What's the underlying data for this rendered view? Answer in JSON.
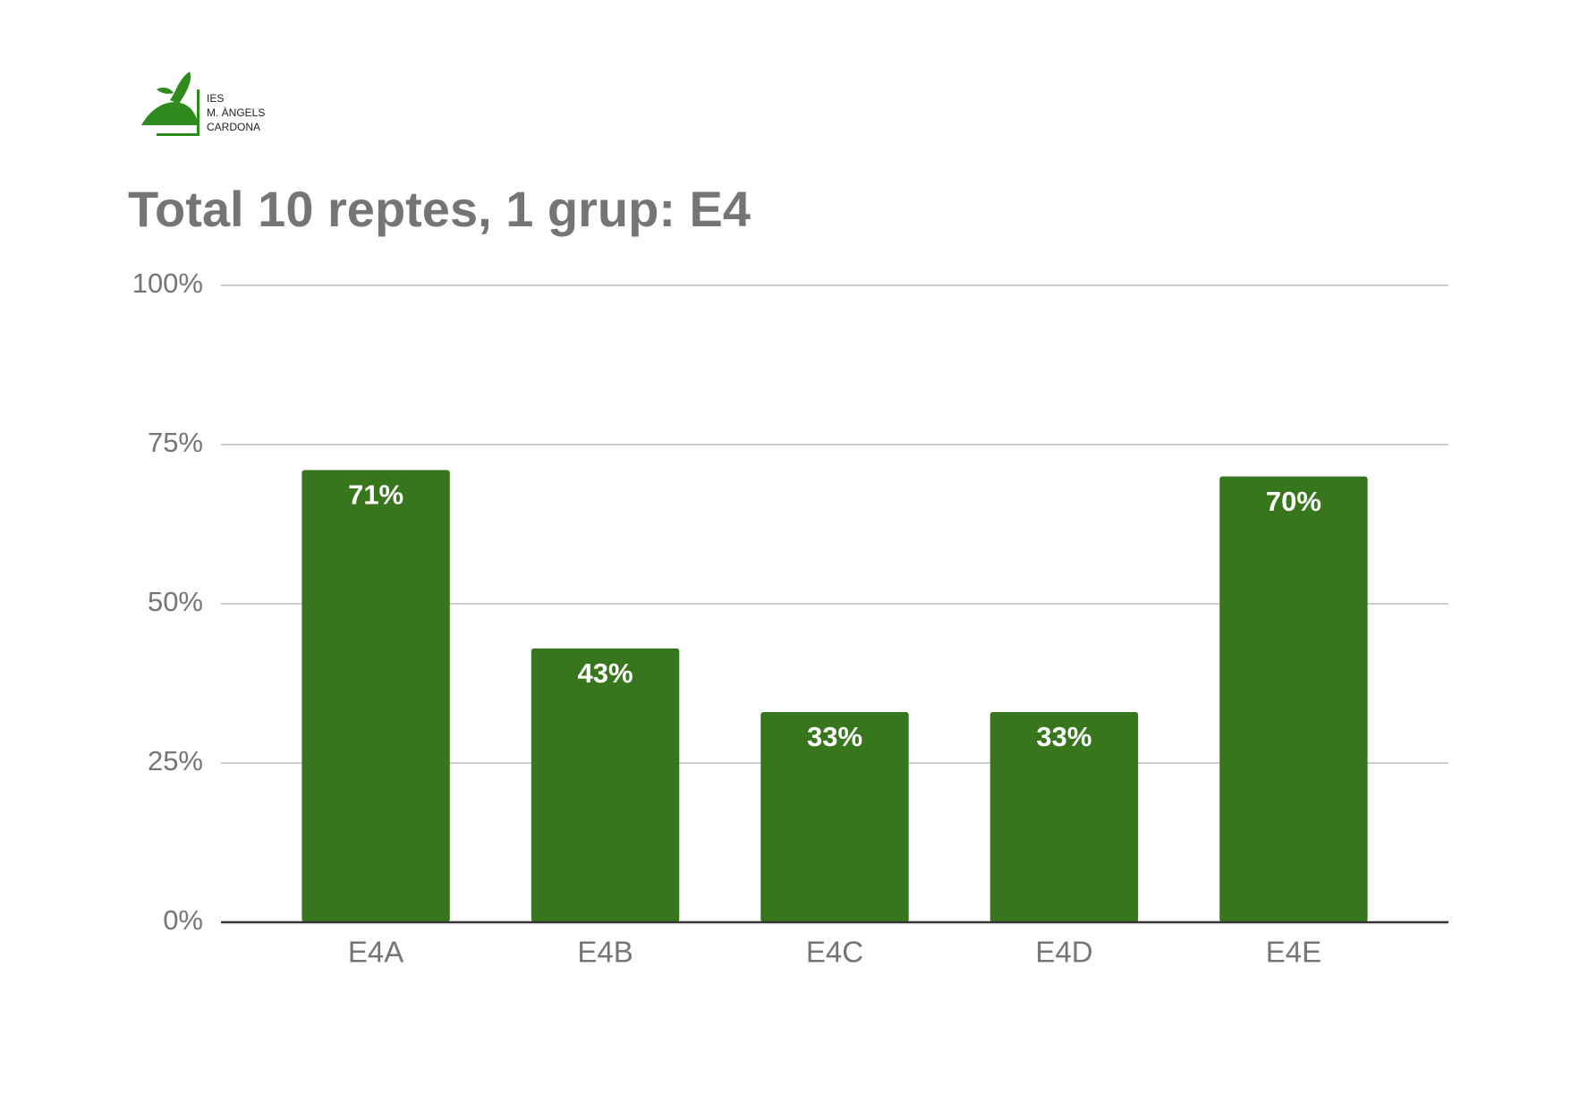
{
  "chart_data": {
    "type": "bar",
    "title": "Total 10 reptes, 1 grup: E4",
    "logo_text": [
      "IES",
      "M. ÀNGELS",
      "CARDONA"
    ],
    "categories": [
      "E4A",
      "E4B",
      "E4C",
      "E4D",
      "E4E"
    ],
    "values": [
      71,
      43,
      33,
      33,
      70
    ],
    "value_labels": [
      "71%",
      "43%",
      "33%",
      "33%",
      "70%"
    ],
    "color": "#38761d",
    "ylim": [
      0,
      100
    ],
    "yticks": [
      {
        "value": 0,
        "label": "0%"
      },
      {
        "value": 25,
        "label": "25%"
      },
      {
        "value": 50,
        "label": "50%"
      },
      {
        "value": 75,
        "label": "75%"
      },
      {
        "value": 100,
        "label": "100%"
      }
    ],
    "grid": true
  }
}
